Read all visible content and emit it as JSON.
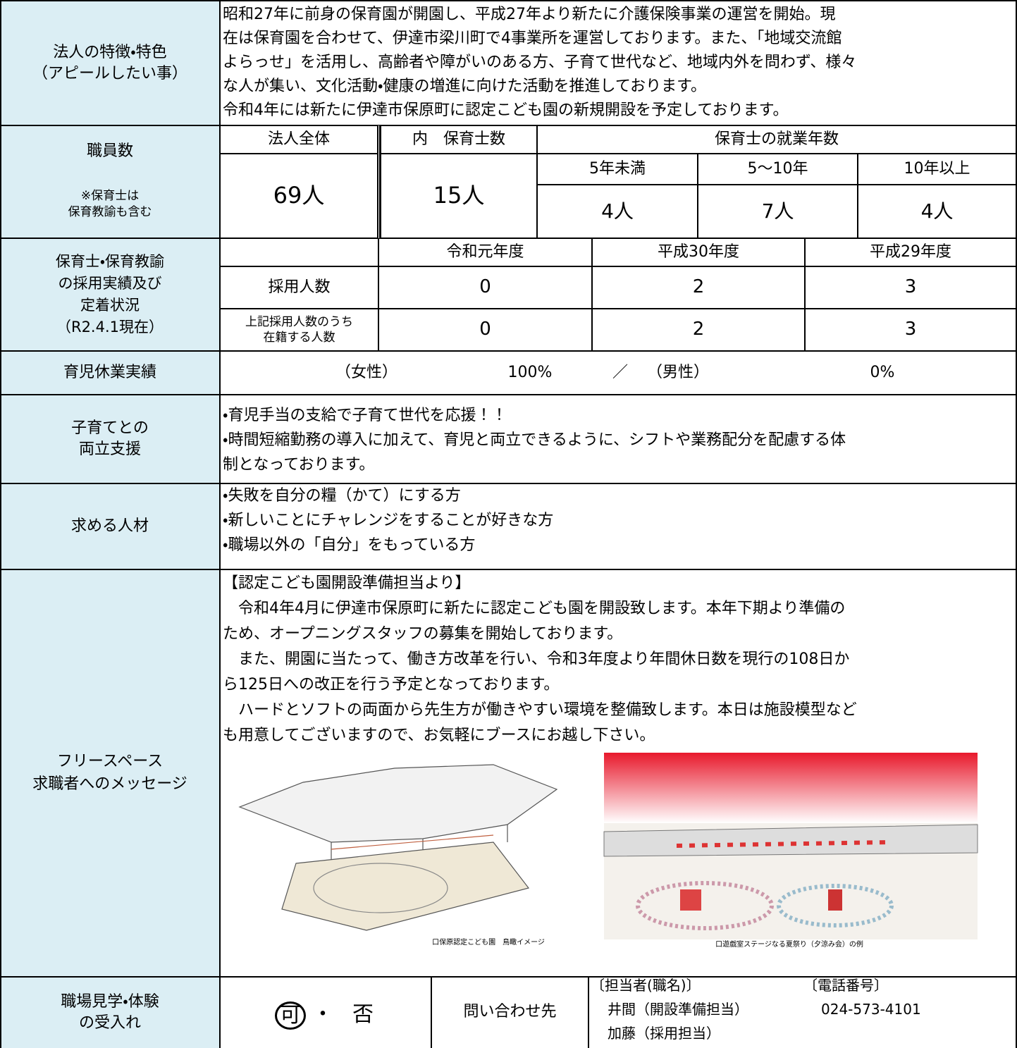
{
  "features": {
    "label": [
      "法人の特徴・特色",
      "（アピールしたい事）"
    ],
    "lines": [
      "昭和27年に前身の保育園が開園し、平成27年より新たに介護保険事業の運営を開始。現",
      "在は保育園を合わせて、伊達市梁川町で4事業所を運営しております。また、「地域交流館",
      "よらっせ」を活用し、高齢者や障がいのある方、子育て世代など、地域内外を問わず、様々",
      "な人が集い、文化活動・健康の増進に向けた活動を推進しております。",
      "令和4年には新たに伊達市保原町に認定こども園の新規開設を予定しております。"
    ]
  },
  "staff": {
    "label": "職員数",
    "note": [
      "※保育士は",
      "保育教諭も含む"
    ],
    "headers": [
      "法人全体",
      "内　保育士数",
      "保育士の就業年数"
    ],
    "tenure": [
      "5年未満",
      "5～10年",
      "10年以上"
    ],
    "total": "69人",
    "nurses": "15人",
    "tenure_counts": [
      "4人",
      "7人",
      "4人"
    ]
  },
  "hiring": {
    "label": [
      "保育士・保育教諭",
      "の採用実績及び",
      "定着状況",
      "（R2.4.1現在）"
    ],
    "years": [
      "令和元年度",
      "平成30年度",
      "平成29年度"
    ],
    "rows": [
      {
        "label": [
          "採用人数"
        ],
        "values": [
          0,
          2,
          3
        ]
      },
      {
        "label": [
          "上記採用人数のうち",
          "在籍する人数"
        ],
        "values": [
          0,
          2,
          3
        ]
      }
    ]
  },
  "leave": {
    "label": "育児休業実績",
    "female_label": "（女性）",
    "female": "100%",
    "separator": "／",
    "male_label": "（男性）",
    "male": "0%"
  },
  "support": {
    "label": [
      "子育てとの",
      "両立支援"
    ],
    "lines": [
      "・育児手当の支給で子育て世代を応援！！",
      "・時間短縮勤務の導入に加えて、育児と両立できるように、シフトや業務配分を配慮する体",
      "制となっております。"
    ]
  },
  "talent": {
    "label": "求める人材",
    "lines": [
      "・失敗を自分の糧（かて）にする方",
      "・新しいことにチャレンジをすることが好きな方",
      "・職場以外の「自分」をもっている方"
    ]
  },
  "message": {
    "label": [
      "フリースペース",
      "求職者へのメッセージ"
    ],
    "lines": [
      "【認定こども園開設準備担当より】",
      "　令和4年4月に伊達市保原町に新たに認定こども園を開設致します。本年下期より準備の",
      "ため、オープニングスタッフの募集を開始しております。",
      "　また、開園に当たって、働き方改革を行い、令和3年度より年間休日数を現行の108日か",
      "ら125日への改正を行う予定となっております。",
      "　ハードとソフトの両面から先生方が働きやすい環境を整備致します。本日は施設模型など",
      "も用意してございますので、お気軽にブースにお越し下さい。"
    ],
    "captions": [
      "口保原認定こども園　鳥瞰イメージ",
      "口遊戯室ステージなる夏祭り（夕涼み会）の例"
    ]
  },
  "visit": {
    "label": [
      "職場見学・体験",
      "の受入れ"
    ],
    "yes": "可",
    "dot": "・",
    "no": "否",
    "contact_label": "問い合わせ先",
    "person_header": "〔担当者(職名)〕",
    "phone_header": "〔電話番号〕",
    "persons": [
      "井間（開設準備担当）",
      "加藤（採用担当）"
    ],
    "phone": "024-573-4101"
  }
}
